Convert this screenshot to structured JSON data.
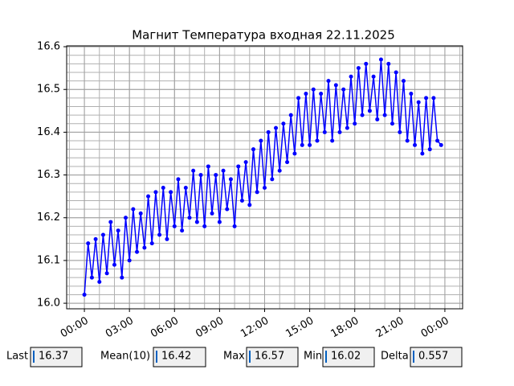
{
  "chart_data": {
    "type": "line",
    "title": "Магнит Температура входная 22.11.2025",
    "x": [
      0,
      0.25,
      0.5,
      0.75,
      1,
      1.25,
      1.5,
      1.75,
      2,
      2.25,
      2.5,
      2.75,
      3,
      3.25,
      3.5,
      3.75,
      4,
      4.25,
      4.5,
      4.75,
      5,
      5.25,
      5.5,
      5.75,
      6,
      6.25,
      6.5,
      6.75,
      7,
      7.25,
      7.5,
      7.75,
      8,
      8.25,
      8.5,
      8.75,
      9,
      9.25,
      9.5,
      9.75,
      10,
      10.25,
      10.5,
      10.75,
      11,
      11.25,
      11.5,
      11.75,
      12,
      12.25,
      12.5,
      12.75,
      13,
      13.25,
      13.5,
      13.75,
      14,
      14.25,
      14.5,
      14.75,
      15,
      15.25,
      15.5,
      15.75,
      16,
      16.25,
      16.5,
      16.75,
      17,
      17.25,
      17.5,
      17.75,
      18,
      18.25,
      18.5,
      18.75,
      19,
      19.25,
      19.5,
      19.75,
      20,
      20.25,
      20.5,
      20.75,
      21,
      21.25,
      21.5,
      21.75,
      22,
      22.25,
      22.5,
      22.75,
      23,
      23.25,
      23.5,
      23.75
    ],
    "series": [
      {
        "color": "#0000ff",
        "values": [
          16.02,
          16.14,
          16.06,
          16.15,
          16.05,
          16.16,
          16.07,
          16.19,
          16.09,
          16.17,
          16.06,
          16.2,
          16.1,
          16.22,
          16.12,
          16.21,
          16.13,
          16.25,
          16.14,
          16.26,
          16.16,
          16.27,
          16.15,
          16.26,
          16.18,
          16.29,
          16.17,
          16.27,
          16.2,
          16.31,
          16.19,
          16.3,
          16.18,
          16.32,
          16.21,
          16.3,
          16.19,
          16.31,
          16.22,
          16.29,
          16.18,
          16.32,
          16.24,
          16.33,
          16.23,
          16.36,
          16.26,
          16.38,
          16.27,
          16.4,
          16.29,
          16.41,
          16.31,
          16.42,
          16.33,
          16.44,
          16.35,
          16.48,
          16.37,
          16.49,
          16.37,
          16.5,
          16.38,
          16.49,
          16.4,
          16.52,
          16.38,
          16.51,
          16.4,
          16.5,
          16.41,
          16.53,
          16.42,
          16.55,
          16.44,
          16.56,
          16.45,
          16.53,
          16.43,
          16.57,
          16.44,
          16.56,
          16.42,
          16.54,
          16.4,
          16.52,
          16.38,
          16.49,
          16.37,
          16.47,
          16.35,
          16.48,
          16.36,
          16.48,
          16.38,
          16.37
        ]
      }
    ],
    "xlim": [
      -1.18,
      25.18
    ],
    "xticks": [
      {
        "value": 0,
        "label": "00:00"
      },
      {
        "value": 3,
        "label": "03:00"
      },
      {
        "value": 6,
        "label": "06:00"
      },
      {
        "value": 9,
        "label": "09:00"
      },
      {
        "value": 12,
        "label": "12:00"
      },
      {
        "value": 15,
        "label": "15:00"
      },
      {
        "value": 18,
        "label": "18:00"
      },
      {
        "value": 21,
        "label": "21:00"
      },
      {
        "value": 24,
        "label": "00:00"
      }
    ],
    "ylim": [
      15.987,
      16.602
    ],
    "yticks": [
      {
        "value": 16.0,
        "label": "16.0"
      },
      16.1,
      16.2,
      16.3,
      16.4,
      16.5,
      16.6
    ],
    "grid": true
  },
  "stats": [
    {
      "label": "Last",
      "value": 16.37
    },
    {
      "label": "Mean(10)",
      "value": 16.42
    },
    {
      "label": "Max",
      "value": 16.57
    },
    {
      "label": "Min",
      "value": 16.02
    },
    {
      "label": "Delta",
      "value": 0.557
    }
  ]
}
